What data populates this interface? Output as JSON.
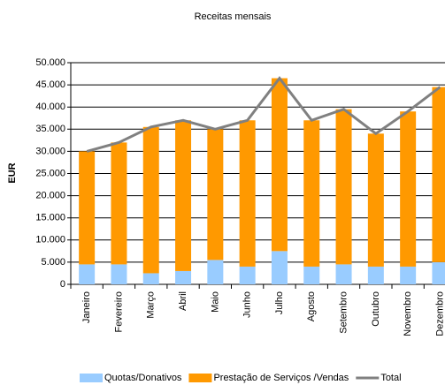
{
  "chart_data": {
    "type": "bar",
    "stacked": true,
    "title": "Receitas mensais",
    "y_label": "EUR",
    "categories": [
      "Janeiro",
      "Fevereiro",
      "Março",
      "Abril",
      "Maio",
      "Junho",
      "Julho",
      "Agosto",
      "Setembro",
      "Outubro",
      "Novembro",
      "Dezembro"
    ],
    "series": [
      {
        "name": "Quotas/Donativos",
        "color": "#99ccff",
        "values": [
          4500,
          4500,
          2500,
          3000,
          5500,
          4000,
          7500,
          4000,
          4500,
          4000,
          4000,
          5000
        ]
      },
      {
        "name": "Prestação de Serviços /Vendas",
        "color": "#ff9900",
        "values": [
          25500,
          27500,
          33000,
          34000,
          29500,
          33000,
          39000,
          33000,
          35000,
          30000,
          35000,
          39500
        ]
      },
      {
        "name": "Total",
        "type": "line",
        "color": "#808080",
        "values": [
          30000,
          32000,
          35500,
          37000,
          35000,
          37000,
          46500,
          37000,
          39500,
          34000,
          39000,
          44500
        ]
      }
    ],
    "ylim": [
      0,
      50000
    ],
    "yticks": [
      0,
      {
        "value": 5000,
        "label": "5.000"
      },
      {
        "value": 10000,
        "label": "10.000"
      },
      {
        "value": 15000,
        "label": "15.000"
      },
      {
        "value": 20000,
        "label": "20.000"
      },
      {
        "value": 25000,
        "label": "25.000"
      },
      {
        "value": 30000,
        "label": "30.000"
      },
      {
        "value": 35000,
        "label": "35.000"
      },
      {
        "value": 40000,
        "label": "40.000"
      },
      {
        "value": 45000,
        "label": "45.000"
      },
      {
        "value": 50000,
        "label": "50.000"
      }
    ],
    "grid": true,
    "legend": "bottom"
  }
}
